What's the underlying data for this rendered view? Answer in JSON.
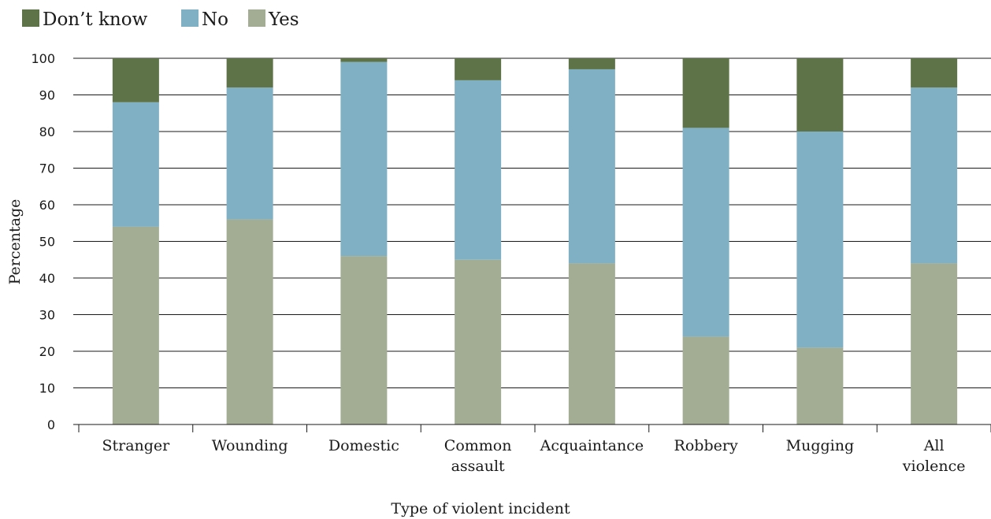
{
  "chart_data": {
    "type": "bar",
    "stacked": true,
    "title": "",
    "xlabel": "Type of violent incident",
    "ylabel": "Percentage",
    "ylim": [
      0,
      100
    ],
    "yticks": [
      0,
      10,
      20,
      30,
      40,
      50,
      60,
      70,
      80,
      90,
      100
    ],
    "grid": true,
    "legend_position": "top-left",
    "categories": [
      [
        "Stranger"
      ],
      [
        "Wounding"
      ],
      [
        "Domestic"
      ],
      [
        "Common",
        "assault"
      ],
      [
        "Acquaintance"
      ],
      [
        "Robbery"
      ],
      [
        "Mugging"
      ],
      [
        "All",
        "violence"
      ]
    ],
    "series": [
      {
        "name": "Yes",
        "color": "#a2ad94",
        "values": [
          54,
          56,
          46,
          45,
          44,
          24,
          21,
          44
        ]
      },
      {
        "name": "No",
        "color": "#80b0c4",
        "values": [
          34,
          36,
          53,
          49,
          53,
          57,
          59,
          48
        ]
      },
      {
        "name": "Don’t know",
        "color": "#5e7348",
        "values": [
          12,
          8,
          1,
          6,
          3,
          19,
          20,
          8
        ]
      }
    ],
    "legend_order": [
      "Don’t know",
      "No",
      "Yes"
    ]
  }
}
